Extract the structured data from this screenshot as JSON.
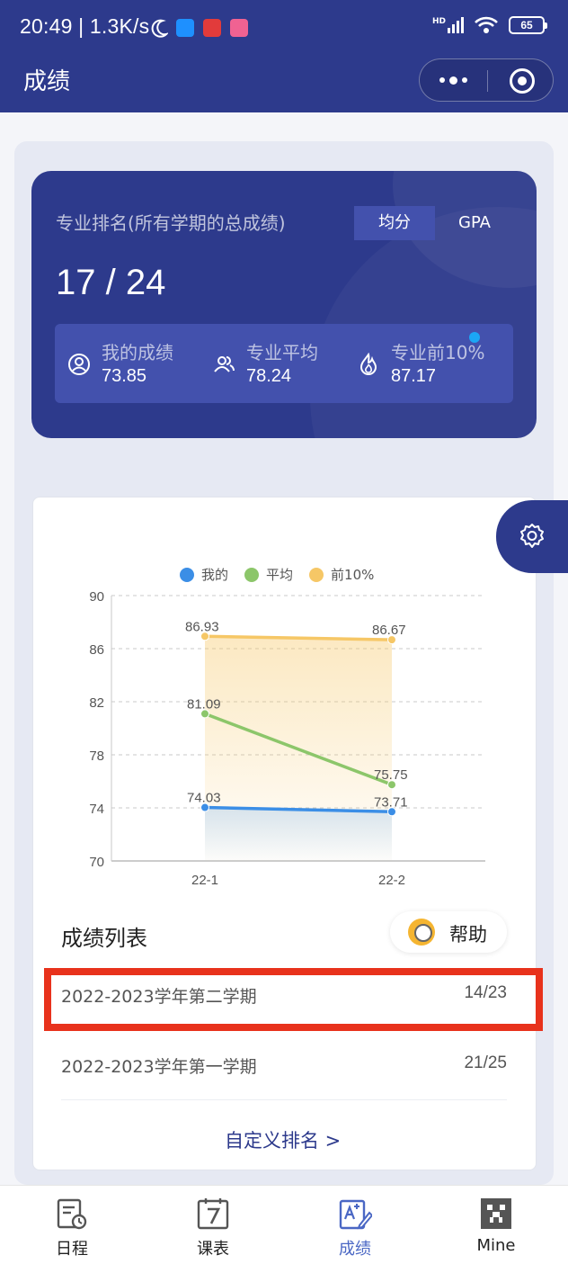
{
  "status_bar": {
    "time": "20:49",
    "network_speed": "1.3K/s",
    "signal": "HD",
    "battery": "65"
  },
  "nav": {
    "title": "成绩",
    "more_icon": "more-dots-icon",
    "close_icon": "target-close-icon"
  },
  "ranking": {
    "label": "专业排名(所有学期的总成绩)",
    "tabs": [
      "均分",
      "GPA"
    ],
    "active_tab": "均分",
    "value": "17 / 24",
    "stats": [
      {
        "icon": "user-circle-icon",
        "label": "我的成绩",
        "value": "73.85"
      },
      {
        "icon": "users-icon",
        "label": "专业平均",
        "value": "78.24"
      },
      {
        "icon": "flame-icon",
        "label": "专业前10%",
        "value": "87.17"
      }
    ]
  },
  "chart_data": {
    "type": "line",
    "categories": [
      "22-1",
      "22-2"
    ],
    "ylim": [
      70,
      90
    ],
    "yticks": [
      "90",
      "86",
      "82",
      "78",
      "74",
      "70"
    ],
    "grid": true,
    "legend": "top-center",
    "series": [
      {
        "name": "我的",
        "color": "#3b8ee6",
        "values": [
          74.03,
          73.71
        ],
        "labels": [
          "74.03",
          "73.71"
        ]
      },
      {
        "name": "平均",
        "color": "#8cc66a",
        "values": [
          81.09,
          75.75
        ],
        "labels": [
          "81.09",
          "75.75"
        ]
      },
      {
        "name": "前10%",
        "color": "#f6c766",
        "values": [
          86.93,
          86.67
        ],
        "labels": [
          "86.93",
          "86.67"
        ]
      }
    ]
  },
  "list": {
    "title": "成绩列表",
    "help_label": "帮助",
    "rows": [
      {
        "term": "2022-2023学年第二学期",
        "rank": "14/23"
      },
      {
        "term": "2022-2023学年第一学期",
        "rank": "21/25"
      }
    ],
    "custom_rank_label": "自定义排名 >"
  },
  "tabbar": {
    "items": [
      {
        "label": "日程",
        "icon": "schedule-icon"
      },
      {
        "label": "课表",
        "icon": "calendar-7-icon"
      },
      {
        "label": "成绩",
        "icon": "grades-icon",
        "active": true
      },
      {
        "label": "Mine",
        "icon": "mine-icon"
      }
    ]
  },
  "colors": {
    "brand": "#2d3a8c",
    "highlight": "#e8321c",
    "accent_link": "#2d3a8c"
  }
}
